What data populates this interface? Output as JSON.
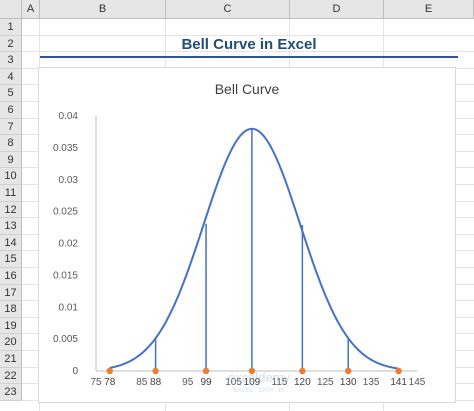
{
  "sheet": {
    "columns": [
      "A",
      "B",
      "C",
      "D",
      "E"
    ],
    "rows": [
      "1",
      "2",
      "3",
      "4",
      "5",
      "6",
      "7",
      "8",
      "9",
      "10",
      "11",
      "12",
      "13",
      "14",
      "15",
      "16",
      "17",
      "18",
      "19",
      "20",
      "21",
      "22",
      "23"
    ],
    "title": "Bell Curve in Excel",
    "accent": "#2f5597"
  },
  "chart_data": {
    "type": "line",
    "title": "Bell Curve",
    "mean": 109,
    "stdev": 10.5,
    "xlim": [
      75,
      145
    ],
    "x_ticks": [
      75,
      85,
      95,
      105,
      115,
      125,
      135,
      145
    ],
    "ylim": [
      0,
      0.04
    ],
    "y_ticks": [
      "0",
      "0.005",
      "0.01",
      "0.015",
      "0.02",
      "0.025",
      "0.03",
      "0.035",
      "0.04"
    ],
    "marker_points": [
      {
        "x": 78,
        "y": 0.0005
      },
      {
        "x": 88,
        "y": 0.0052
      },
      {
        "x": 99,
        "y": 0.0231
      },
      {
        "x": 109,
        "y": 0.038
      },
      {
        "x": 120,
        "y": 0.0229
      },
      {
        "x": 130,
        "y": 0.0051
      },
      {
        "x": 141,
        "y": 0.0004
      }
    ],
    "marker_labels": [
      "78",
      "88",
      "99",
      "109",
      "120",
      "130",
      "141"
    ],
    "line_color": "#4472c4",
    "marker_color": "#ed7d31"
  },
  "watermark": {
    "name": "exceldemy",
    "tagline": "EXCEL · DATA · BI"
  }
}
